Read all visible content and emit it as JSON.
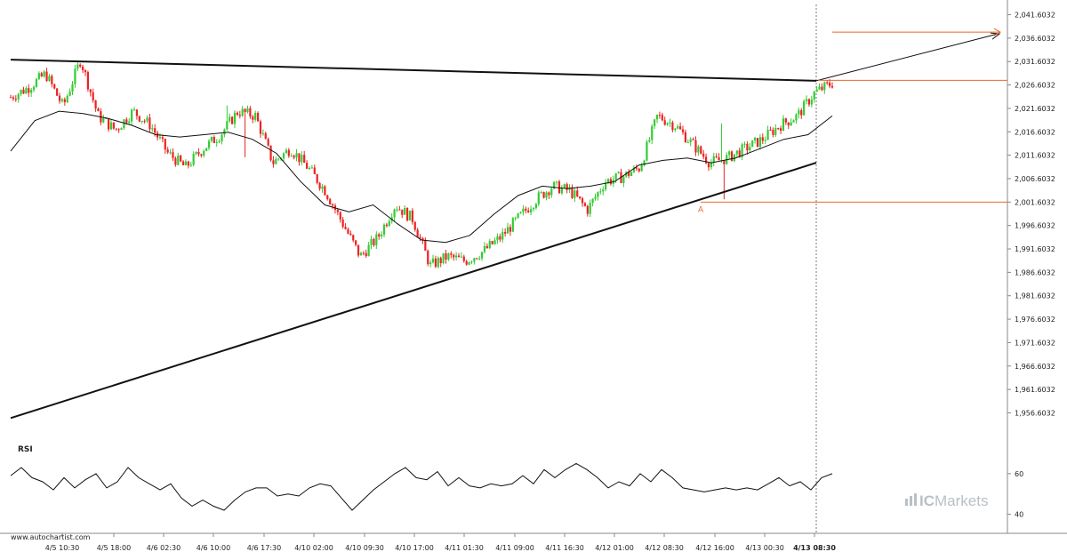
{
  "chart_data": [
    {
      "type": "candlestick",
      "title": "",
      "xlabel": "",
      "ylabel": "",
      "ylim": [
        1954.6032,
        2043.6032
      ],
      "y_ticks": [
        "2,041.6032",
        "2,036.6032",
        "2,031.6032",
        "2,026.6032",
        "2,021.6032",
        "2,016.6032",
        "2,011.6032",
        "2,006.6032",
        "2,001.6032",
        "1,996.6032",
        "1,991.6032",
        "1,986.6032",
        "1,981.6032",
        "1,976.6032",
        "1,971.6032",
        "1,966.6032",
        "1,961.6032",
        "1,956.6032"
      ],
      "x_ticks": [
        "4/5 10:30",
        "4/5 18:00",
        "4/6 02:30",
        "4/6 10:00",
        "4/6 17:30",
        "4/10 02:00",
        "4/10 09:30",
        "4/10 17:00",
        "4/11 01:30",
        "4/11 09:00",
        "4/11 16:30",
        "4/12 01:00",
        "4/12 08:30",
        "4/12 16:00",
        "4/13 00:30",
        "4/13 08:30"
      ],
      "close_path": [
        2024,
        2026,
        2029,
        2022,
        2032,
        2020,
        2017,
        2021,
        2018,
        2012,
        2009,
        2013,
        2016,
        2021,
        2020,
        2010,
        2013,
        2009,
        2004,
        1997,
        1990,
        1994,
        2001,
        1998,
        1988,
        1990,
        1989,
        1991,
        1994,
        1998,
        2002,
        2005,
        2004,
        2000,
        2006,
        2007,
        2009,
        2020,
        2018,
        2014,
        2010,
        2011,
        2013,
        2015,
        2018,
        2020,
        2025,
        2027
      ],
      "candle_colors": {
        "up": "#33cc33",
        "down": "#ee2222"
      },
      "moving_average": [
        2012.5,
        2019,
        2021,
        2020.5,
        2019.5,
        2018,
        2016,
        2015.5,
        2016,
        2016.5,
        2015,
        2012,
        2006,
        2001,
        1999.5,
        2001,
        1997,
        1993.5,
        1993,
        1994.5,
        1999,
        2003,
        2005,
        2004.5,
        2005,
        2006,
        2009.5,
        2010.5,
        2011,
        2010,
        2011,
        2013,
        2015,
        2016,
        2020
      ],
      "pattern": {
        "type": "triangle",
        "upper_line": {
          "start": 2032.0,
          "end": 2027.5
        },
        "lower_line": {
          "start": 1955.5,
          "end": 2010.0
        },
        "breakout_arrow_target": 2037.5,
        "target_level": 2037.5,
        "resistance_level": 2027.6,
        "support_level": 2001.6,
        "point_label": "A"
      }
    },
    {
      "type": "line",
      "title": "RSI",
      "ylim": [
        35,
        70
      ],
      "y_ticks": [
        "60",
        "40"
      ],
      "values": [
        59,
        63,
        58,
        56,
        52,
        58,
        53,
        57,
        60,
        53,
        56,
        63,
        58,
        55,
        52,
        55,
        48,
        44,
        47,
        44,
        42,
        47,
        51,
        53,
        53,
        49,
        50,
        49,
        53,
        55,
        54,
        48,
        42,
        47,
        52,
        56,
        60,
        63,
        58,
        57,
        61,
        54,
        58,
        54,
        53,
        55,
        54,
        55,
        59,
        55,
        62,
        58,
        62,
        65,
        62,
        58,
        53,
        56,
        54,
        60,
        56,
        62,
        58,
        53,
        52,
        51,
        52,
        53,
        52,
        53,
        52,
        55,
        58,
        54,
        56,
        52,
        58,
        60
      ]
    }
  ],
  "watermark": "www.autochartist.com",
  "brand": {
    "prefix": "IC",
    "name": "Markets"
  },
  "colors": {
    "accent": "#e8682b",
    "trend": "#111111",
    "grid": "#cccccc"
  }
}
